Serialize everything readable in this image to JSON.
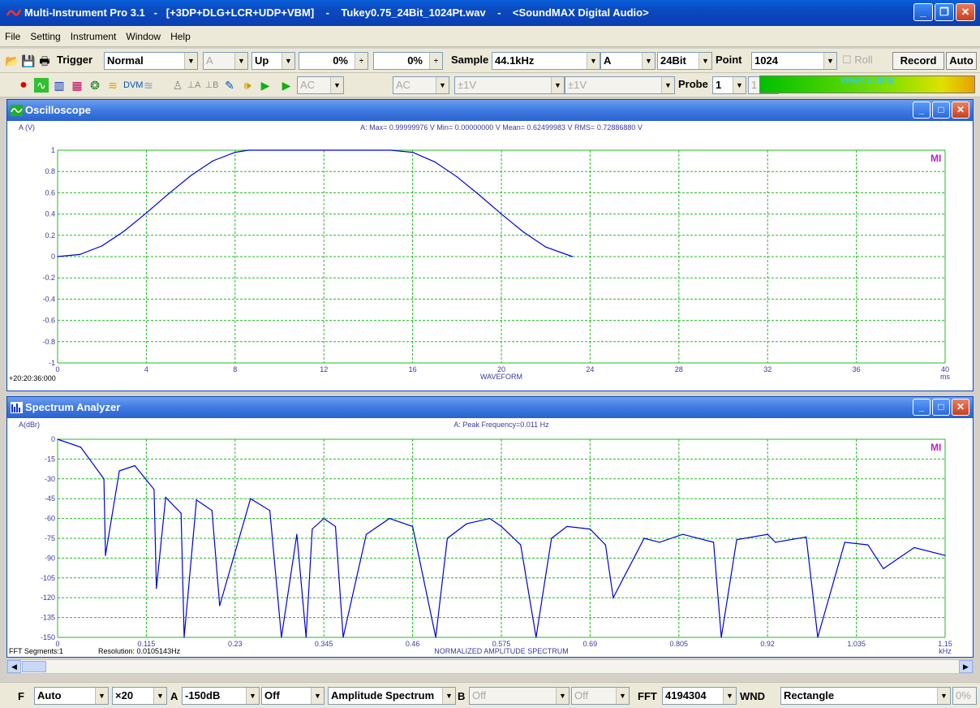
{
  "window": {
    "title": "Multi-Instrument Pro 3.1   -   [+3DP+DLG+LCR+UDP+VBM]    -    Tukey0.75_24Bit_1024Pt.wav    -    <SoundMAX Digital Audio>"
  },
  "menu": [
    "File",
    "Setting",
    "Instrument",
    "Window",
    "Help"
  ],
  "toolbar1": {
    "trigger_label": "Trigger",
    "trigger_mode": "Normal",
    "trigger_channel": "A",
    "trigger_edge": "Up",
    "trigger_level": "0%",
    "trigger_delay": "0%",
    "sample_label": "Sample",
    "sample_rate": "44.1kHz",
    "channel": "A",
    "bits": "24Bit",
    "point_label": "Point",
    "points": "1024",
    "roll_label": "Roll",
    "record_label": "Record",
    "auto_label": "Auto"
  },
  "toolbar2": {
    "coupling_a": "AC",
    "coupling_b": "AC",
    "range_a": "±1V",
    "range_b": "±1V",
    "probe_label": "Probe",
    "probe_a": "1",
    "probe_b": "1",
    "meter_text": "99%(-0.1 dBFS)"
  },
  "oscilloscope": {
    "title": "Oscilloscope",
    "ylabel": "A (V)",
    "stats": "A: Max= 0.99999976 V  Min= 0.00000000 V  Mean= 0.62499983 V  RMS= 0.72886880 V",
    "xlabel": "WAVEFORM",
    "xunit": "ms",
    "time_start": "+20:20:36:000",
    "logo": "MI",
    "yticks": [
      "1",
      "0.8",
      "0.6",
      "0.4",
      "0.2",
      "0",
      "-0.2",
      "-0.4",
      "-0.6",
      "-0.8",
      "-1"
    ],
    "xticks": [
      "0",
      "4",
      "8",
      "12",
      "16",
      "20",
      "24",
      "28",
      "32",
      "36",
      "40"
    ]
  },
  "spectrum": {
    "title": "Spectrum Analyzer",
    "ylabel": "A(dBr)",
    "stats": "A: Peak Frequency=0.011 Hz",
    "xlabel": "NORMALIZED AMPLITUDE SPECTRUM",
    "xunit": "kHz",
    "fft_segments": "FFT Segments:1",
    "resolution": "Resolution: 0.0105143Hz",
    "logo": "MI",
    "yticks": [
      "0",
      "-15",
      "-30",
      "-45",
      "-60",
      "-75",
      "-90",
      "-105",
      "-120",
      "-135",
      "-150"
    ],
    "xticks": [
      "0",
      "0.115",
      "0.23",
      "0.345",
      "0.46",
      "0.575",
      "0.69",
      "0.805",
      "0.92",
      "1.035",
      "1.15"
    ]
  },
  "statusbar": {
    "f_label": "F",
    "f_mode": "Auto",
    "zoom": "×20",
    "a_label": "A",
    "a_floor": "-150dB",
    "weighting": "Off",
    "analysis": "Amplitude Spectrum",
    "b_label": "B",
    "b_mode1": "Off",
    "b_mode2": "Off",
    "fft_label": "FFT",
    "fft_size": "4194304",
    "wnd_label": "WND",
    "window_fn": "Rectangle",
    "overlap": "0%"
  },
  "colors": {
    "trace": "#0000e0",
    "grid": "#22bb22",
    "axis_text": "#3a3aa0",
    "title_bar": "#2a62d0"
  },
  "chart_data": [
    {
      "type": "line",
      "title": "",
      "xlabel": "WAVEFORM",
      "ylabel": "A (V)",
      "xlim": [
        0,
        40
      ],
      "ylim": [
        -1,
        1
      ],
      "grid": true,
      "series": [
        {
          "name": "A",
          "x": [
            0,
            1,
            2,
            3,
            4,
            5,
            6,
            7,
            8,
            8.6,
            12,
            15,
            15.5,
            16,
            17,
            18,
            19,
            20,
            21,
            22,
            23.2
          ],
          "y": [
            0,
            0.02,
            0.1,
            0.24,
            0.41,
            0.59,
            0.76,
            0.9,
            0.98,
            1,
            1,
            1,
            0.99,
            0.98,
            0.89,
            0.75,
            0.58,
            0.4,
            0.23,
            0.09,
            0
          ]
        }
      ]
    },
    {
      "type": "line",
      "title": "",
      "xlabel": "NORMALIZED AMPLITUDE SPECTRUM",
      "ylabel": "A(dBr)",
      "xlim": [
        0,
        1.15
      ],
      "ylim": [
        -150,
        0
      ],
      "grid": true,
      "series": [
        {
          "name": "A",
          "x": [
            0,
            0.03,
            0.06,
            0.062,
            0.08,
            0.1,
            0.125,
            0.128,
            0.14,
            0.16,
            0.164,
            0.18,
            0.2,
            0.21,
            0.25,
            0.275,
            0.29,
            0.31,
            0.322,
            0.33,
            0.345,
            0.36,
            0.37,
            0.4,
            0.43,
            0.46,
            0.49,
            0.505,
            0.53,
            0.56,
            0.575,
            0.6,
            0.62,
            0.64,
            0.66,
            0.69,
            0.71,
            0.72,
            0.76,
            0.78,
            0.81,
            0.85,
            0.86,
            0.88,
            0.92,
            0.93,
            0.97,
            0.985,
            1.02,
            1.05,
            1.07,
            1.11,
            1.15
          ],
          "y": [
            0,
            -6,
            -30,
            -88,
            -24,
            -20,
            -38,
            -113,
            -44,
            -56,
            -150,
            -46,
            -54,
            -126,
            -45,
            -54,
            -150,
            -72,
            -150,
            -68,
            -60,
            -66,
            -150,
            -72,
            -60,
            -66,
            -150,
            -75,
            -64,
            -60,
            -66,
            -80,
            -150,
            -75,
            -66,
            -68,
            -80,
            -120,
            -75,
            -78,
            -72,
            -78,
            -150,
            -76,
            -72,
            -78,
            -74,
            -150,
            -78,
            -80,
            -98,
            -82,
            -88
          ]
        }
      ]
    }
  ]
}
